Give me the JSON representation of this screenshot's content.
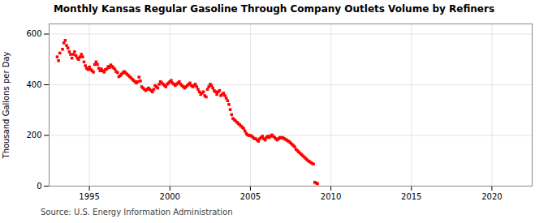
{
  "chart_data": {
    "type": "scatter",
    "title": "Monthly Kansas Regular Gasoline Through Company Outlets Volume by Refiners",
    "ylabel": "Thousand Gallons per Day",
    "source": "Source: U.S. Energy Information Administration",
    "color": "#ff0000",
    "marker": "square",
    "grid": true,
    "xlim": [
      1992.5,
      2022.5
    ],
    "ylim": [
      0,
      640
    ],
    "xticks": [
      1995,
      2000,
      2005,
      2010,
      2015,
      2020
    ],
    "yticks": [
      0,
      200,
      400,
      600
    ],
    "x": [
      1993.0,
      1993.083,
      1993.167,
      1993.333,
      1993.417,
      1993.5,
      1993.583,
      1993.667,
      1993.75,
      1993.833,
      1993.917,
      1994.0,
      1994.083,
      1994.167,
      1994.25,
      1994.333,
      1994.417,
      1994.5,
      1994.583,
      1994.667,
      1994.75,
      1994.833,
      1994.917,
      1995.0,
      1995.083,
      1995.167,
      1995.25,
      1995.333,
      1995.417,
      1995.5,
      1995.583,
      1995.667,
      1995.75,
      1995.833,
      1995.917,
      1996.0,
      1996.083,
      1996.167,
      1996.25,
      1996.333,
      1996.417,
      1996.5,
      1996.583,
      1996.667,
      1996.75,
      1996.833,
      1996.917,
      1997.0,
      1997.083,
      1997.167,
      1997.25,
      1997.333,
      1997.417,
      1997.5,
      1997.583,
      1997.667,
      1997.75,
      1997.833,
      1997.917,
      1998.0,
      1998.083,
      1998.167,
      1998.25,
      1998.333,
      1998.417,
      1998.5,
      1998.583,
      1998.667,
      1998.75,
      1998.833,
      1998.917,
      1999.0,
      1999.083,
      1999.167,
      1999.25,
      1999.333,
      1999.417,
      1999.5,
      1999.583,
      1999.667,
      1999.75,
      1999.833,
      1999.917,
      2000.0,
      2000.083,
      2000.167,
      2000.25,
      2000.333,
      2000.417,
      2000.5,
      2000.583,
      2000.667,
      2000.75,
      2000.833,
      2000.917,
      2001.0,
      2001.083,
      2001.167,
      2001.25,
      2001.333,
      2001.417,
      2001.5,
      2001.583,
      2001.667,
      2001.75,
      2001.833,
      2001.917,
      2002.0,
      2002.083,
      2002.167,
      2002.25,
      2002.333,
      2002.417,
      2002.5,
      2002.583,
      2002.667,
      2002.75,
      2002.833,
      2002.917,
      2003.0,
      2003.083,
      2003.167,
      2003.25,
      2003.333,
      2003.417,
      2003.5,
      2003.583,
      2003.667,
      2003.75,
      2003.833,
      2003.917,
      2004.0,
      2004.083,
      2004.167,
      2004.25,
      2004.333,
      2004.417,
      2004.5,
      2004.583,
      2004.667,
      2004.75,
      2004.833,
      2004.917,
      2005.0,
      2005.083,
      2005.167,
      2005.25,
      2005.333,
      2005.417,
      2005.5,
      2005.583,
      2005.667,
      2005.75,
      2005.833,
      2005.917,
      2006.0,
      2006.083,
      2006.167,
      2006.25,
      2006.333,
      2006.417,
      2006.5,
      2006.583,
      2006.667,
      2006.75,
      2006.833,
      2006.917,
      2007.0,
      2007.083,
      2007.167,
      2007.25,
      2007.333,
      2007.417,
      2007.5,
      2007.583,
      2007.667,
      2007.75,
      2007.833,
      2007.917,
      2008.0,
      2008.083,
      2008.167,
      2008.25,
      2008.333,
      2008.417,
      2008.5,
      2008.583,
      2008.667,
      2008.75,
      2008.833,
      2008.917,
      2009.0,
      2009.083,
      2009.167
    ],
    "values": [
      510,
      495,
      525,
      540,
      565,
      575,
      555,
      545,
      530,
      520,
      505,
      520,
      530,
      515,
      505,
      500,
      510,
      520,
      510,
      490,
      475,
      465,
      460,
      470,
      460,
      455,
      450,
      480,
      490,
      480,
      465,
      455,
      462,
      455,
      450,
      460,
      462,
      472,
      468,
      478,
      472,
      467,
      461,
      452,
      448,
      432,
      436,
      442,
      447,
      452,
      447,
      442,
      437,
      432,
      427,
      422,
      417,
      412,
      407,
      412,
      430,
      415,
      392,
      387,
      382,
      377,
      382,
      387,
      382,
      377,
      372,
      382,
      397,
      392,
      387,
      402,
      412,
      407,
      402,
      397,
      392,
      402,
      407,
      412,
      417,
      407,
      402,
      397,
      402,
      407,
      412,
      402,
      397,
      392,
      387,
      392,
      397,
      402,
      407,
      397,
      392,
      397,
      402,
      392,
      382,
      372,
      362,
      367,
      372,
      357,
      352,
      382,
      392,
      402,
      397,
      387,
      377,
      372,
      362,
      372,
      377,
      357,
      362,
      367,
      357,
      347,
      337,
      322,
      302,
      282,
      267,
      262,
      257,
      252,
      247,
      242,
      237,
      232,
      227,
      217,
      207,
      202,
      200,
      200,
      197,
      192,
      187,
      187,
      182,
      177,
      187,
      192,
      197,
      187,
      182,
      192,
      197,
      192,
      197,
      202,
      197,
      192,
      187,
      182,
      187,
      192,
      190,
      192,
      188,
      185,
      182,
      178,
      175,
      170,
      165,
      160,
      155,
      145,
      140,
      135,
      130,
      125,
      120,
      115,
      110,
      105,
      100,
      97,
      93,
      90,
      87,
      15,
      12,
      10
    ]
  }
}
